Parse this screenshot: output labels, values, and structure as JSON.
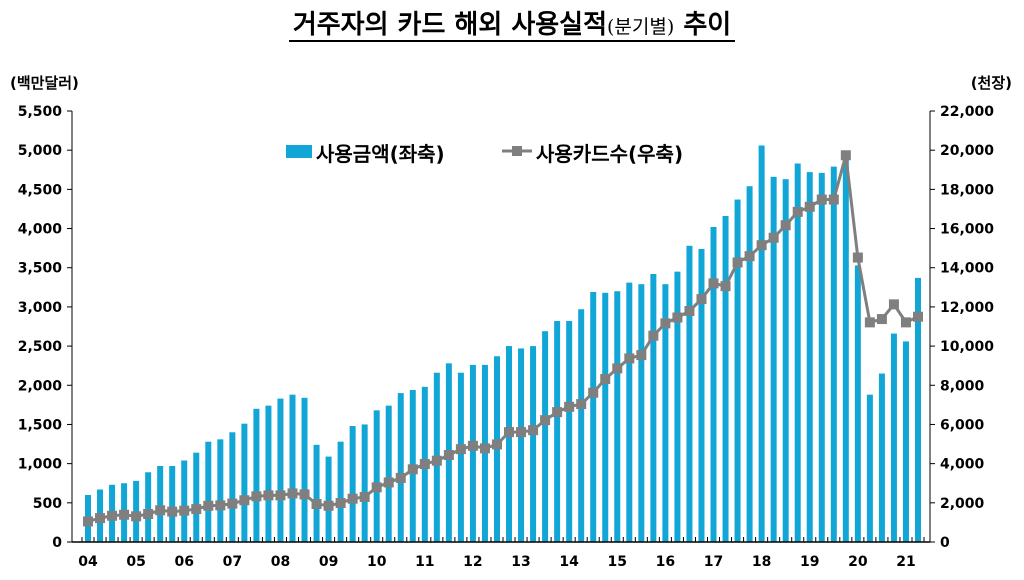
{
  "chart_data": {
    "type": "bar+line",
    "title": "거주자의 카드 해외 사용실적",
    "title_suffix": "(분기별)",
    "title_end": "추이",
    "ylabel_left": "(백만달러)",
    "ylabel_right": "(천장)",
    "ylim_left": [
      0,
      5500
    ],
    "ylim_right": [
      0,
      22000
    ],
    "yticks_left": [
      "0",
      "500",
      "1,000",
      "1,500",
      "2,000",
      "2,500",
      "3,000",
      "3,500",
      "4,000",
      "4,500",
      "5,000",
      "5,500"
    ],
    "yticks_right": [
      "0",
      "2,000",
      "4,000",
      "6,000",
      "8,000",
      "10,000",
      "12,000",
      "14,000",
      "16,000",
      "18,000",
      "20,000",
      "22,000"
    ],
    "year_labels": [
      "04",
      "05",
      "06",
      "07",
      "08",
      "09",
      "10",
      "11",
      "12",
      "13",
      "14",
      "15",
      "16",
      "17",
      "18",
      "19",
      "20",
      "21"
    ],
    "x_note": "quarterly, 2004Q1-2021Q2",
    "legend_position": "top-center",
    "colors": {
      "bar": "#12A6D6",
      "line": "#7F7F7F"
    },
    "series": [
      {
        "name": "사용금액(좌축)",
        "axis": "left",
        "kind": "bar",
        "values": [
          600,
          670,
          730,
          750,
          780,
          890,
          970,
          970,
          1040,
          1140,
          1280,
          1310,
          1400,
          1510,
          1700,
          1740,
          1830,
          1880,
          1840,
          1240,
          1090,
          1280,
          1480,
          1500,
          1680,
          1740,
          1900,
          1940,
          1980,
          2160,
          2280,
          2160,
          2260,
          2260,
          2370,
          2500,
          2470,
          2500,
          2690,
          2820,
          2820,
          2970,
          3190,
          3180,
          3200,
          3310,
          3290,
          3420,
          3290,
          3450,
          3780,
          3740,
          4020,
          4160,
          4370,
          4540,
          5060,
          4660,
          4630,
          4830,
          4720,
          4710,
          4790,
          4950,
          3530,
          1880,
          2150,
          2660,
          2560,
          3370
        ]
      },
      {
        "name": "사용카드수(우축)",
        "axis": "right",
        "kind": "line",
        "values": [
          1050,
          1220,
          1340,
          1390,
          1310,
          1430,
          1620,
          1550,
          1600,
          1680,
          1850,
          1870,
          1960,
          2130,
          2330,
          2380,
          2380,
          2480,
          2430,
          1940,
          1850,
          1990,
          2210,
          2300,
          2790,
          3040,
          3270,
          3710,
          3980,
          4150,
          4440,
          4740,
          4910,
          4780,
          4980,
          5610,
          5610,
          5710,
          6220,
          6630,
          6900,
          7040,
          7620,
          8320,
          8860,
          9370,
          9540,
          10530,
          11160,
          11460,
          11790,
          12400,
          13200,
          13060,
          14270,
          14590,
          15150,
          15530,
          16170,
          16850,
          17110,
          17480,
          17480,
          19740,
          14520,
          11210,
          11380,
          12130,
          11210,
          11500
        ]
      }
    ]
  }
}
